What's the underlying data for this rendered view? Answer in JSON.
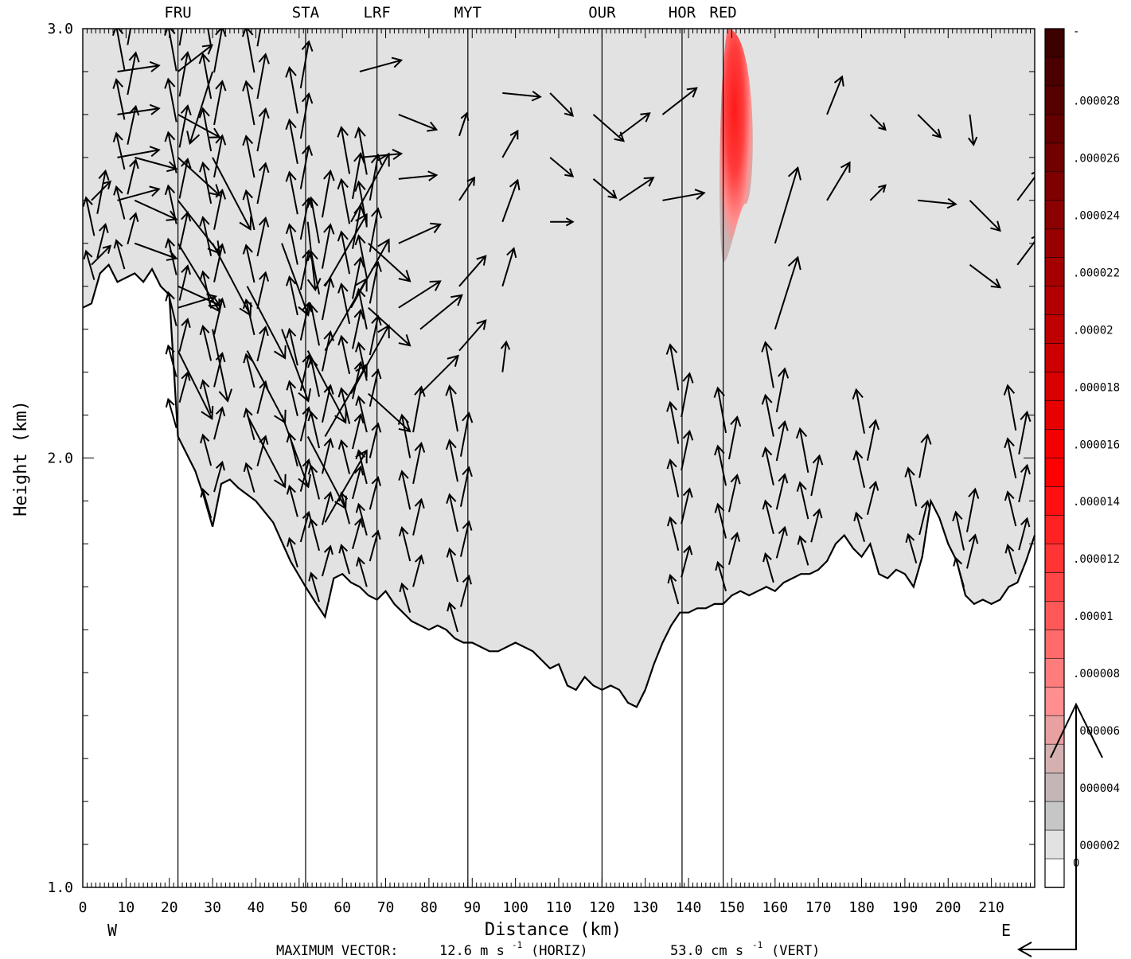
{
  "chart_data": {
    "type": "vector-cross-section",
    "xlabel": "Distance (km)",
    "ylabel": "Height (km)",
    "xlim": [
      0,
      220
    ],
    "ylim": [
      1.0,
      3.0
    ],
    "x_ticks": [
      0,
      10,
      20,
      30,
      40,
      50,
      60,
      70,
      80,
      90,
      100,
      110,
      120,
      130,
      140,
      150,
      160,
      170,
      180,
      190,
      200,
      210
    ],
    "y_ticks": [
      1.0,
      2.0,
      3.0
    ],
    "y_tick_labels": [
      "1.0",
      "2.0",
      "3.0"
    ],
    "west_label": "W",
    "east_label": "E",
    "max_vector_label": "MAXIMUM VECTOR:",
    "max_horiz": "12.6 m s",
    "max_horiz_unit": "(HORIZ)",
    "max_vert": "53.0 cm s",
    "max_vert_unit": "(VERT)",
    "exponent": "-1",
    "stations": [
      {
        "name": "FRU",
        "x": 22
      },
      {
        "name": "STA",
        "x": 51.5
      },
      {
        "name": "LRF",
        "x": 68
      },
      {
        "name": "MYT",
        "x": 89
      },
      {
        "name": "OUR",
        "x": 120
      },
      {
        "name": "HOR",
        "x": 138.5
      },
      {
        "name": "RED",
        "x": 148
      }
    ],
    "terrain": [
      [
        0,
        2.35
      ],
      [
        2,
        2.36
      ],
      [
        4,
        2.43
      ],
      [
        6,
        2.45
      ],
      [
        8,
        2.41
      ],
      [
        10,
        2.42
      ],
      [
        12,
        2.43
      ],
      [
        14,
        2.41
      ],
      [
        16,
        2.44
      ],
      [
        18,
        2.4
      ],
      [
        20,
        2.38
      ],
      [
        22,
        2.05
      ],
      [
        26,
        1.97
      ],
      [
        28,
        1.91
      ],
      [
        30,
        1.84
      ],
      [
        32,
        1.94
      ],
      [
        34,
        1.95
      ],
      [
        36,
        1.93
      ],
      [
        40,
        1.9
      ],
      [
        44,
        1.85
      ],
      [
        48,
        1.76
      ],
      [
        51.5,
        1.7
      ],
      [
        54,
        1.66
      ],
      [
        56,
        1.63
      ],
      [
        58,
        1.72
      ],
      [
        60,
        1.73
      ],
      [
        62,
        1.71
      ],
      [
        64,
        1.7
      ],
      [
        66,
        1.68
      ],
      [
        68,
        1.67
      ],
      [
        70,
        1.69
      ],
      [
        72,
        1.66
      ],
      [
        74,
        1.64
      ],
      [
        76,
        1.62
      ],
      [
        78,
        1.61
      ],
      [
        80,
        1.6
      ],
      [
        82,
        1.61
      ],
      [
        84,
        1.6
      ],
      [
        86,
        1.58
      ],
      [
        88,
        1.57
      ],
      [
        90,
        1.57
      ],
      [
        92,
        1.56
      ],
      [
        94,
        1.55
      ],
      [
        96,
        1.55
      ],
      [
        98,
        1.56
      ],
      [
        100,
        1.57
      ],
      [
        102,
        1.56
      ],
      [
        104,
        1.55
      ],
      [
        106,
        1.53
      ],
      [
        108,
        1.51
      ],
      [
        110,
        1.52
      ],
      [
        112,
        1.47
      ],
      [
        114,
        1.46
      ],
      [
        116,
        1.49
      ],
      [
        118,
        1.47
      ],
      [
        120,
        1.46
      ],
      [
        122,
        1.47
      ],
      [
        124,
        1.46
      ],
      [
        126,
        1.43
      ],
      [
        128,
        1.42
      ],
      [
        130,
        1.46
      ],
      [
        132,
        1.52
      ],
      [
        134,
        1.57
      ],
      [
        136,
        1.61
      ],
      [
        138,
        1.64
      ],
      [
        140,
        1.64
      ],
      [
        142,
        1.65
      ],
      [
        144,
        1.65
      ],
      [
        146,
        1.66
      ],
      [
        148,
        1.66
      ],
      [
        150,
        1.68
      ],
      [
        152,
        1.69
      ],
      [
        154,
        1.68
      ],
      [
        156,
        1.69
      ],
      [
        158,
        1.7
      ],
      [
        160,
        1.69
      ],
      [
        162,
        1.71
      ],
      [
        164,
        1.72
      ],
      [
        166,
        1.73
      ],
      [
        168,
        1.73
      ],
      [
        170,
        1.74
      ],
      [
        172,
        1.76
      ],
      [
        174,
        1.8
      ],
      [
        176,
        1.82
      ],
      [
        178,
        1.79
      ],
      [
        180,
        1.77
      ],
      [
        182,
        1.8
      ],
      [
        184,
        1.73
      ],
      [
        186,
        1.72
      ],
      [
        188,
        1.74
      ],
      [
        190,
        1.73
      ],
      [
        192,
        1.7
      ],
      [
        194,
        1.77
      ],
      [
        196,
        1.9
      ],
      [
        198,
        1.86
      ],
      [
        200,
        1.8
      ],
      [
        202,
        1.76
      ],
      [
        204,
        1.68
      ],
      [
        206,
        1.66
      ],
      [
        208,
        1.67
      ],
      [
        210,
        1.66
      ],
      [
        212,
        1.67
      ],
      [
        214,
        1.7
      ],
      [
        216,
        1.71
      ],
      [
        218,
        1.76
      ],
      [
        220,
        1.82
      ]
    ],
    "ridges": [
      {
        "cx": 3,
        "top": 2.6
      },
      {
        "cx": 10,
        "top": 3.0
      },
      {
        "cx": 22,
        "top": 3.0
      },
      {
        "cx": 30,
        "top": 3.0
      },
      {
        "cx": 40,
        "top": 3.0
      },
      {
        "cx": 50,
        "top": 2.9
      },
      {
        "cx": 55,
        "top": 2.6
      },
      {
        "cx": 62,
        "top": 2.7
      },
      {
        "cx": 66,
        "top": 2.7
      },
      {
        "cx": 76,
        "top": 2.1
      },
      {
        "cx": 87,
        "top": 2.1
      },
      {
        "cx": 138,
        "top": 2.2
      },
      {
        "cx": 149,
        "top": 2.1
      },
      {
        "cx": 160,
        "top": 2.2
      },
      {
        "cx": 168,
        "top": 2.0
      },
      {
        "cx": 181,
        "top": 2.1
      },
      {
        "cx": 193,
        "top": 2.0
      },
      {
        "cx": 204,
        "top": 1.85
      },
      {
        "cx": 216,
        "top": 2.1
      }
    ],
    "vectors": [
      [
        2,
        2.45,
        0.25,
        0.25
      ],
      [
        2,
        2.6,
        0.25,
        0.25
      ],
      [
        8,
        2.9,
        0.55,
        0.08
      ],
      [
        8,
        2.8,
        0.55,
        0.08
      ],
      [
        8,
        2.7,
        0.55,
        0.1
      ],
      [
        8,
        2.6,
        0.55,
        0.15
      ],
      [
        12,
        2.5,
        0.55,
        -0.2
      ],
      [
        12,
        2.6,
        0.55,
        -0.25
      ],
      [
        12,
        2.7,
        0.55,
        -0.15
      ],
      [
        22,
        2.9,
        0.45,
        0.35
      ],
      [
        22,
        2.8,
        0.55,
        -0.3
      ],
      [
        22,
        2.7,
        0.55,
        -0.5
      ],
      [
        22,
        2.6,
        0.55,
        -0.7
      ],
      [
        22,
        2.5,
        0.55,
        -0.9
      ],
      [
        22,
        2.4,
        0.55,
        -0.25
      ],
      [
        22,
        2.35,
        0.5,
        0.15
      ],
      [
        22,
        2.25,
        0.45,
        -0.9
      ],
      [
        30,
        2.9,
        -0.3,
        -0.95
      ],
      [
        30,
        2.7,
        0.5,
        -0.95
      ],
      [
        30,
        2.5,
        0.5,
        -0.95
      ],
      [
        30,
        2.3,
        0.2,
        -0.95
      ],
      [
        38,
        2.4,
        0.5,
        -0.95
      ],
      [
        38,
        2.25,
        0.5,
        -0.95
      ],
      [
        38,
        2.1,
        0.5,
        -0.95
      ],
      [
        46,
        2.5,
        0.35,
        -0.95
      ],
      [
        46,
        2.3,
        0.35,
        -0.95
      ],
      [
        46,
        2.1,
        0.35,
        -0.95
      ],
      [
        52,
        2.55,
        0.1,
        -0.9
      ],
      [
        52,
        2.25,
        0.5,
        -0.95
      ],
      [
        52,
        2.05,
        0.5,
        -0.95
      ],
      [
        56,
        2.4,
        0.55,
        0.95
      ],
      [
        56,
        2.25,
        0.55,
        0.95
      ],
      [
        56,
        2.05,
        0.55,
        0.95
      ],
      [
        56,
        1.85,
        0.55,
        0.95
      ],
      [
        62,
        2.55,
        0.5,
        0.9
      ],
      [
        62,
        2.35,
        0.5,
        0.9
      ],
      [
        62,
        2.15,
        0.5,
        0.9
      ],
      [
        64,
        2.9,
        0.55,
        0.15
      ],
      [
        64,
        2.7,
        0.55,
        0.05
      ],
      [
        66,
        2.5,
        0.55,
        -0.5
      ],
      [
        66,
        2.35,
        0.55,
        -0.5
      ],
      [
        66,
        2.15,
        0.55,
        -0.5
      ],
      [
        73,
        2.8,
        0.5,
        -0.2
      ],
      [
        73,
        2.65,
        0.5,
        0.05
      ],
      [
        73,
        2.5,
        0.55,
        0.25
      ],
      [
        73,
        2.35,
        0.55,
        0.35
      ],
      [
        78,
        2.3,
        0.55,
        0.45
      ],
      [
        78,
        2.15,
        0.5,
        0.5
      ],
      [
        87,
        2.75,
        0.1,
        0.3
      ],
      [
        87,
        2.6,
        0.2,
        0.3
      ],
      [
        87,
        2.4,
        0.35,
        0.4
      ],
      [
        87,
        2.25,
        0.35,
        0.4
      ],
      [
        97,
        2.85,
        0.5,
        -0.05
      ],
      [
        97,
        2.7,
        0.2,
        0.35
      ],
      [
        97,
        2.55,
        0.2,
        0.55
      ],
      [
        97,
        2.4,
        0.15,
        0.5
      ],
      [
        97,
        2.2,
        0.05,
        0.4
      ],
      [
        108,
        2.85,
        0.3,
        -0.3
      ],
      [
        108,
        2.7,
        0.3,
        -0.25
      ],
      [
        108,
        2.55,
        0.3,
        0
      ],
      [
        118,
        2.8,
        0.4,
        -0.35
      ],
      [
        118,
        2.65,
        0.3,
        -0.25
      ],
      [
        124,
        2.75,
        0.4,
        0.3
      ],
      [
        124,
        2.6,
        0.45,
        0.3
      ],
      [
        134,
        2.8,
        0.45,
        0.35
      ],
      [
        134,
        2.6,
        0.55,
        0.1
      ],
      [
        160,
        2.5,
        0.3,
        1.0
      ],
      [
        160,
        2.3,
        0.3,
        0.95
      ],
      [
        172,
        2.8,
        0.2,
        0.5
      ],
      [
        172,
        2.6,
        0.3,
        0.5
      ],
      [
        182,
        2.8,
        0.2,
        -0.2
      ],
      [
        182,
        2.6,
        0.2,
        0.2
      ],
      [
        193,
        2.8,
        0.3,
        -0.3
      ],
      [
        193,
        2.6,
        0.5,
        -0.05
      ],
      [
        205,
        2.8,
        0.05,
        -0.4
      ],
      [
        205,
        2.6,
        0.4,
        -0.4
      ],
      [
        205,
        2.45,
        0.4,
        -0.3
      ],
      [
        216,
        2.6,
        0.3,
        0.4
      ],
      [
        216,
        2.45,
        0.3,
        0.4
      ]
    ],
    "colorbar": {
      "labels": [
        "-",
        ".000028",
        ".000026",
        ".000024",
        ".000022",
        ".00002",
        ".000018",
        ".000016",
        ".000014",
        ".000012",
        ".00001",
        ".000008",
        ".000006",
        ".000004",
        ".000002",
        "0"
      ],
      "colors": [
        "#3d0000",
        "#4a0000",
        "#570000",
        "#640000",
        "#710000",
        "#7e0000",
        "#8b0000",
        "#980000",
        "#a50000",
        "#b20000",
        "#bf0000",
        "#cc0000",
        "#d90000",
        "#e60000",
        "#f30000",
        "#ff0000",
        "#ff1010",
        "#ff2222",
        "#ff3434",
        "#ff4646",
        "#ff5858",
        "#ff6a6a",
        "#ff7c7c",
        "#ff8e8e",
        "#e8a0a0",
        "#d4b0b0",
        "#c4b6b6",
        "#c6c6c6",
        "#e2e2e2",
        "#ffffff"
      ]
    },
    "plume": {
      "x": [
        147.5,
        156
      ],
      "y": [
        2.5,
        3.0
      ],
      "peak": ".000008"
    }
  }
}
